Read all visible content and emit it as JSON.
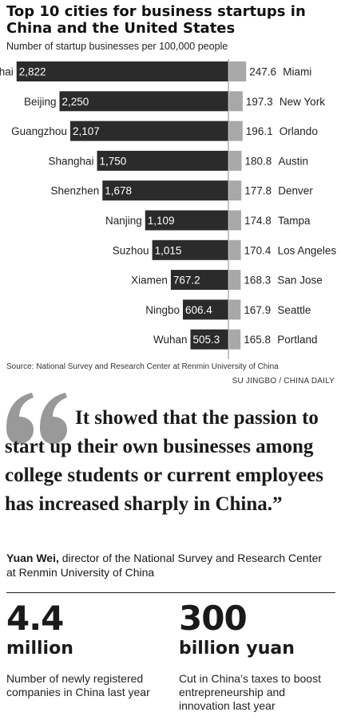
{
  "title": "Top 10 cities for business startups in China and the United States",
  "subtitle": "Number of startup businesses per 100,000 people",
  "chart_data": {
    "type": "bar",
    "title": "Top 10 cities for business startups in China and the United States",
    "ylabel": "Number of startup businesses per 100,000 people",
    "series": [
      {
        "name": "China",
        "categories": [
          "Zhuhai",
          "Beijing",
          "Guangzhou",
          "Shanghai",
          "Shenzhen",
          "Nanjing",
          "Suzhou",
          "Xiamen",
          "Ningbo",
          "Wuhan"
        ],
        "values": [
          2822,
          2250,
          2107,
          1750,
          1678,
          1109,
          1015,
          767.2,
          606.4,
          505.3
        ],
        "labels": [
          "2,822",
          "2,250",
          "2,107",
          "1,750",
          "1,678",
          "1,109",
          "1,015",
          "767.2",
          "606.4",
          "505.3"
        ],
        "color": "#2b2b2b"
      },
      {
        "name": "United States",
        "categories": [
          "Miami",
          "New York",
          "Orlando",
          "Austin",
          "Denver",
          "Tampa",
          "Los Angeles",
          "San Jose",
          "Seattle",
          "Portland"
        ],
        "values": [
          247.6,
          197.3,
          196.1,
          180.8,
          177.8,
          174.8,
          170.4,
          168.3,
          167.9,
          165.8
        ],
        "labels": [
          "247.6",
          "197.3",
          "196.1",
          "180.8",
          "177.8",
          "174.8",
          "170.4",
          "168.3",
          "167.9",
          "165.8"
        ],
        "color": "#a8a8a8"
      }
    ]
  },
  "source": "Source: National Survey and Research Center at Renmin University of China",
  "credit": "SU JINGBO / CHINA DAILY",
  "quote": {
    "text": "It showed that the passion to start up their own businesses among college students or current employees has increased sharply in China.”",
    "author": "Yuan Wei,",
    "author_title": " director of the National Survey and Research Center at Renmin University of China"
  },
  "stats": [
    {
      "number": "4.4",
      "unit": "million",
      "description": "Number of newly registered companies in China last year"
    },
    {
      "number": "300",
      "unit": "billion yuan",
      "description": "Cut in China’s taxes to boost entrepreneurship and innovation last year"
    }
  ],
  "colors": {
    "china_bar": "#2b2b2b",
    "us_bar": "#a8a8a8",
    "quote_mark": "#999999"
  }
}
